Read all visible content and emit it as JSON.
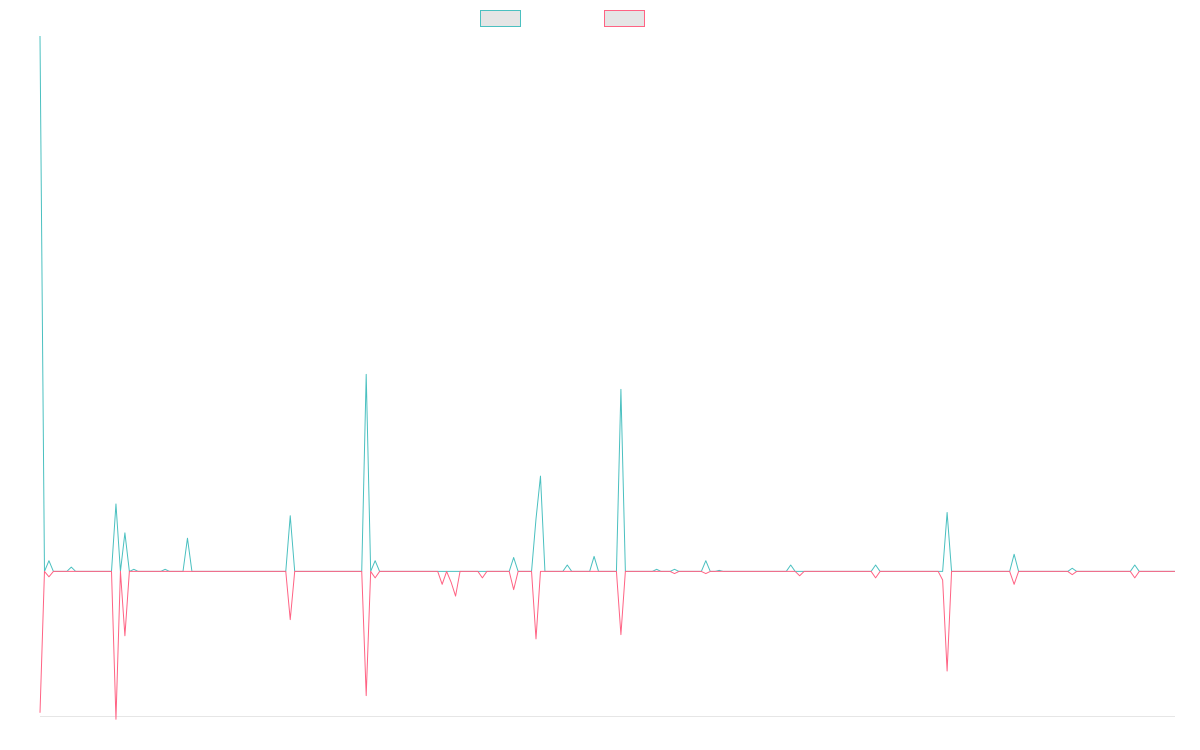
{
  "chart_data": {
    "type": "line",
    "title": "",
    "xlabel": "",
    "ylabel": "",
    "grid": false,
    "legend_position": "top-center",
    "ylim": [
      -1.35,
      5.0
    ],
    "x_count": 255,
    "series": [
      {
        "legend_label": "",
        "color": "#4bc0c0",
        "fill": "#e5e5e5",
        "spikes": [
          [
            0,
            5.0
          ],
          [
            2,
            0.1
          ],
          [
            7,
            0.04
          ],
          [
            17,
            0.63
          ],
          [
            19,
            0.36
          ],
          [
            21,
            0.02
          ],
          [
            28,
            0.02
          ],
          [
            33,
            0.31
          ],
          [
            56,
            0.52
          ],
          [
            73,
            1.84
          ],
          [
            75,
            0.1
          ],
          [
            90,
            0.0
          ],
          [
            106,
            0.13
          ],
          [
            111,
            0.49
          ],
          [
            112,
            0.89
          ],
          [
            118,
            0.06
          ],
          [
            124,
            0.14
          ],
          [
            130,
            1.7
          ],
          [
            138,
            0.02
          ],
          [
            142,
            0.02
          ],
          [
            149,
            0.1
          ],
          [
            152,
            0.01
          ],
          [
            163,
            0.0
          ],
          [
            168,
            0.06
          ],
          [
            171,
            0.0
          ],
          [
            187,
            0.06
          ],
          [
            197,
            0.0
          ],
          [
            200,
            0.0
          ],
          [
            203,
            0.55
          ],
          [
            218,
            0.16
          ],
          [
            231,
            0.03
          ],
          [
            245,
            0.06
          ]
        ]
      },
      {
        "legend_label": "",
        "color": "#ff6384",
        "fill": "#e5e5e5",
        "spikes": [
          [
            0,
            -1.32
          ],
          [
            2,
            -0.05
          ],
          [
            17,
            -1.38
          ],
          [
            19,
            -0.6
          ],
          [
            56,
            -0.45
          ],
          [
            73,
            -1.16
          ],
          [
            75,
            -0.06
          ],
          [
            90,
            -0.0
          ],
          [
            90,
            -0.12
          ],
          [
            92,
            -0.1
          ],
          [
            93,
            -0.23
          ],
          [
            99,
            -0.06
          ],
          [
            106,
            -0.17
          ],
          [
            111,
            -0.63
          ],
          [
            124,
            -0.0
          ],
          [
            130,
            -0.59
          ],
          [
            142,
            -0.02
          ],
          [
            149,
            -0.02
          ],
          [
            170,
            -0.04
          ],
          [
            187,
            -0.06
          ],
          [
            202,
            -0.08
          ],
          [
            203,
            -0.93
          ],
          [
            218,
            -0.12
          ],
          [
            231,
            -0.03
          ],
          [
            245,
            -0.06
          ]
        ]
      }
    ]
  }
}
